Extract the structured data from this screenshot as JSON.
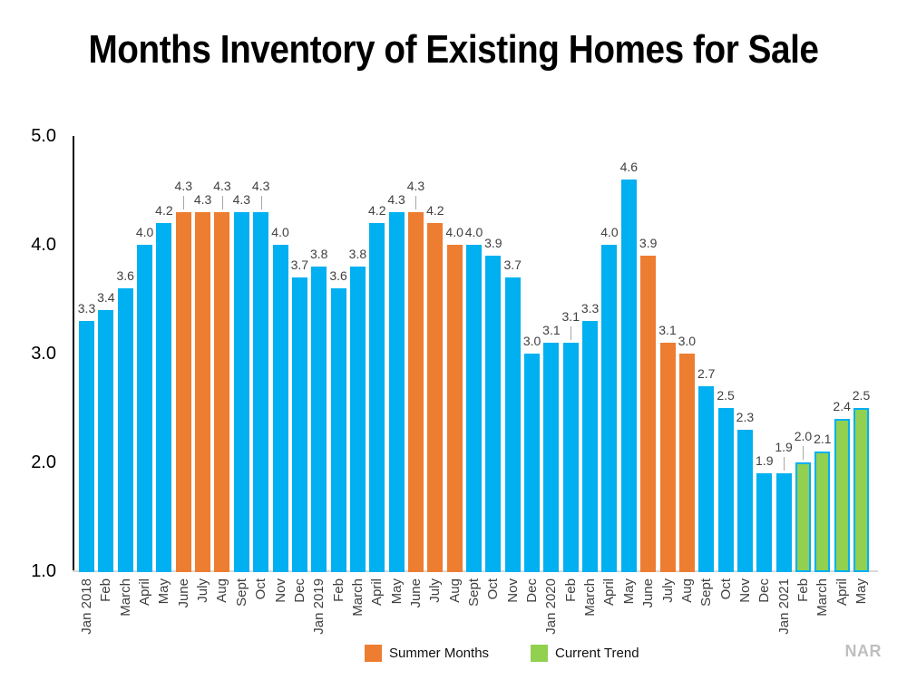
{
  "title": "Months Inventory of Existing Homes for Sale",
  "source": "NAR",
  "legend": [
    {
      "label": "Summer Months",
      "color_key": "orange"
    },
    {
      "label": "Current Trend",
      "color_key": "green"
    }
  ],
  "colors": {
    "blue": "#00B0F0",
    "orange": "#ED7D31",
    "green": "#92D050",
    "green_border": "#00B0F0",
    "axis": "#0d0d0d",
    "baseline": "#d9d9d9",
    "label_text": "#404040",
    "leader": "#a6a6a6",
    "source_text": "#bfbfbf"
  },
  "chart_data": {
    "type": "bar",
    "title": "Months Inventory of Existing Homes for Sale",
    "xlabel": "",
    "ylabel": "",
    "ylim": [
      1.0,
      5.0
    ],
    "y_ticks": [
      "5.0",
      "4.0",
      "3.0",
      "2.0",
      "1.0"
    ],
    "grid": false,
    "legend_position": "bottom",
    "categories": [
      "Jan 2018",
      "Feb",
      "March",
      "April",
      "May",
      "June",
      "July",
      "Aug",
      "Sept",
      "Oct",
      "Nov",
      "Dec",
      "Jan 2019",
      "Feb",
      "March",
      "April",
      "May",
      "June",
      "July",
      "Aug",
      "Sept",
      "Oct",
      "Nov",
      "Dec",
      "Jan 2020",
      "Feb",
      "March",
      "April",
      "May",
      "June",
      "July",
      "Aug",
      "Sept",
      "Oct",
      "Nov",
      "Dec",
      "Jan 2021",
      "Feb",
      "March",
      "April",
      "May"
    ],
    "values": [
      3.3,
      3.4,
      3.6,
      4.0,
      4.2,
      4.3,
      4.3,
      4.3,
      4.3,
      4.3,
      4.0,
      3.7,
      3.8,
      3.6,
      3.8,
      4.2,
      4.3,
      4.3,
      4.2,
      4.0,
      4.0,
      3.9,
      3.7,
      3.0,
      3.1,
      3.1,
      3.3,
      4.0,
      4.6,
      3.9,
      3.1,
      3.0,
      2.7,
      2.5,
      2.3,
      1.9,
      1.9,
      2.0,
      2.1,
      2.4,
      2.5
    ],
    "point_colors": [
      "blue",
      "blue",
      "blue",
      "blue",
      "blue",
      "orange",
      "orange",
      "orange",
      "blue",
      "blue",
      "blue",
      "blue",
      "blue",
      "blue",
      "blue",
      "blue",
      "blue",
      "orange",
      "orange",
      "orange",
      "blue",
      "blue",
      "blue",
      "blue",
      "blue",
      "blue",
      "blue",
      "blue",
      "blue",
      "orange",
      "orange",
      "orange",
      "blue",
      "blue",
      "blue",
      "blue",
      "blue",
      "green",
      "green",
      "green",
      "green"
    ],
    "raised_label_indices": [
      5,
      7,
      9,
      17,
      25,
      36,
      37
    ],
    "series_notes": {
      "blue": "regular months",
      "orange": "Summer Months (Jun-Aug 2018, 2019, 2020)",
      "green": "Current Trend (Feb-May 2021)"
    }
  }
}
